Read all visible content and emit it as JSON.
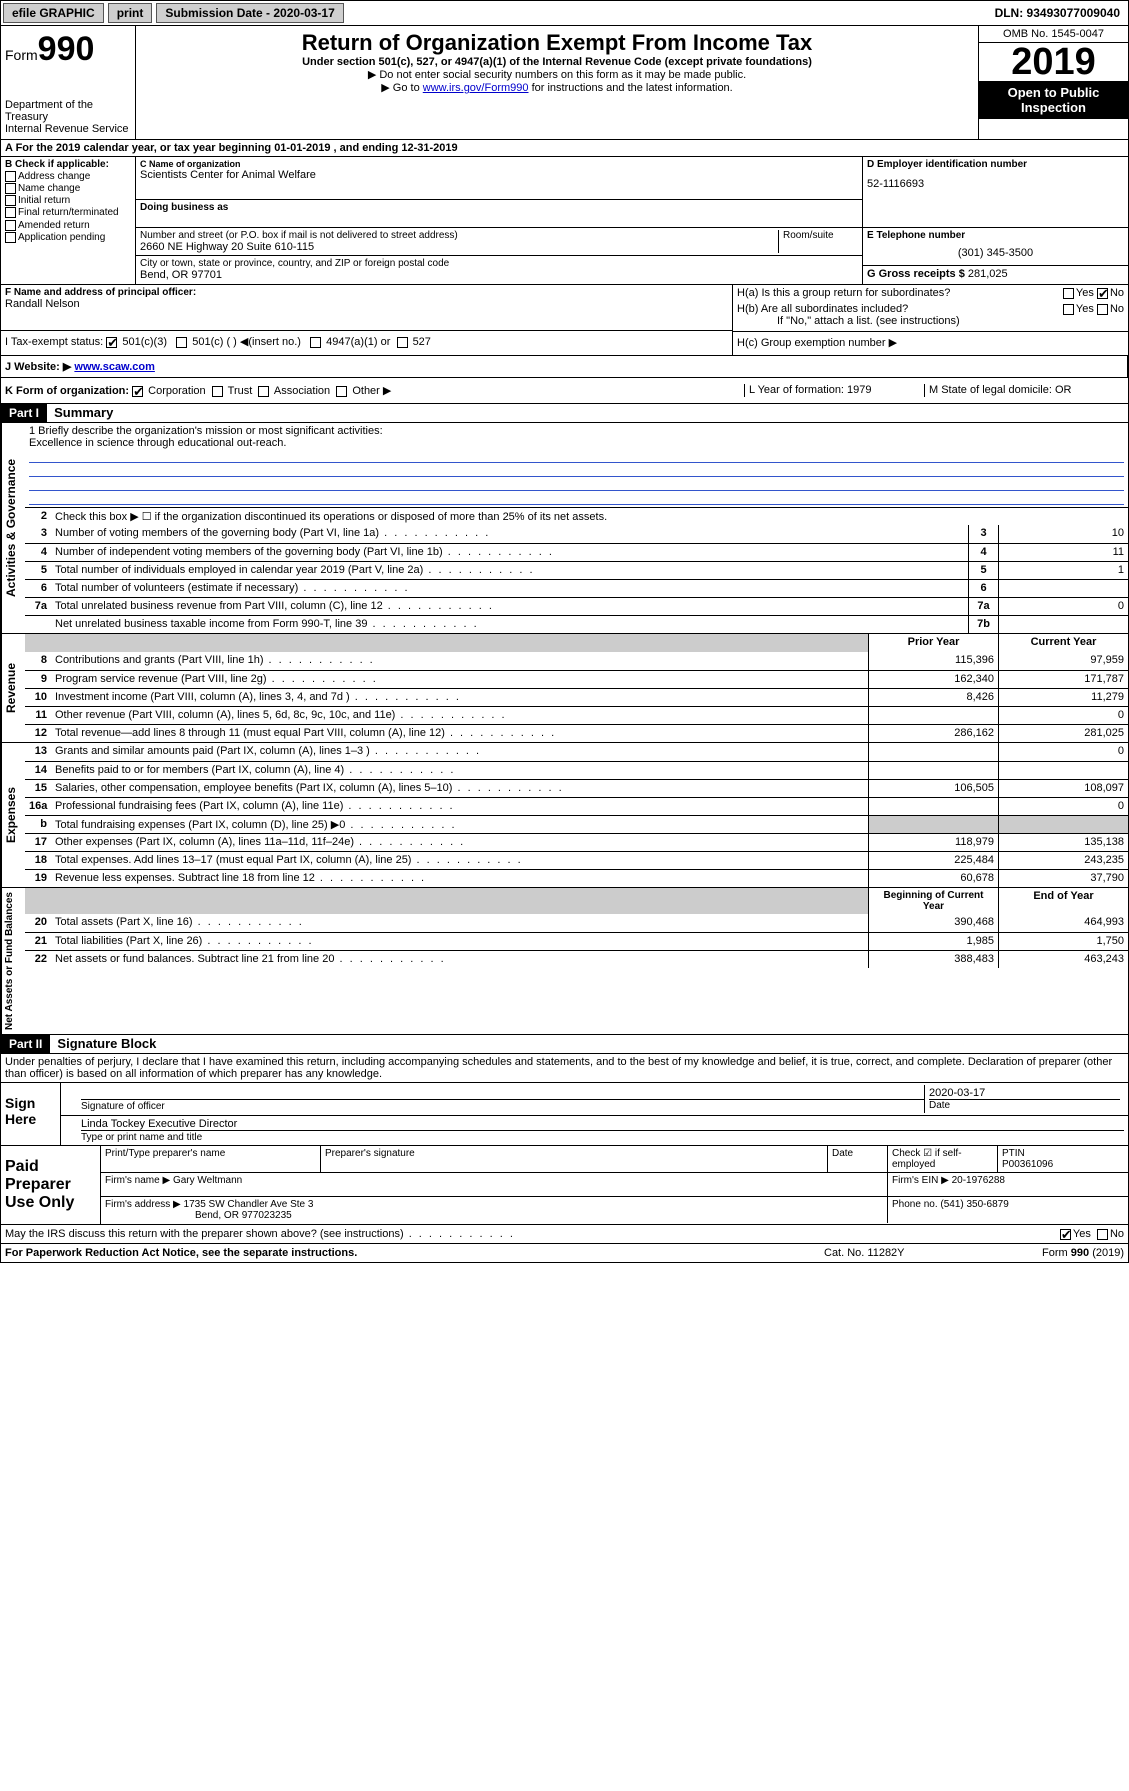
{
  "topbar": {
    "efile": "efile GRAPHIC",
    "print": "print",
    "subdate_lbl": "Submission Date - 2020-03-17",
    "dln": "DLN: 93493077009040"
  },
  "header": {
    "form_word": "Form",
    "form_num": "990",
    "dept": "Department of the Treasury\nInternal Revenue Service",
    "title": "Return of Organization Exempt From Income Tax",
    "subtitle": "Under section 501(c), 527, or 4947(a)(1) of the Internal Revenue Code (except private foundations)",
    "note1": "▶ Do not enter social security numbers on this form as it may be made public.",
    "note2_pre": "▶ Go to ",
    "note2_link": "www.irs.gov/Form990",
    "note2_post": " for instructions and the latest information.",
    "omb": "OMB No. 1545-0047",
    "year": "2019",
    "open": "Open to Public Inspection"
  },
  "row_a": "A For the 2019 calendar year, or tax year beginning 01-01-2019   , and ending 12-31-2019",
  "col_b": {
    "hdr": "B Check if applicable:",
    "opts": [
      "Address change",
      "Name change",
      "Initial return",
      "Final return/terminated",
      "Amended return",
      "Application pending"
    ]
  },
  "col_c": {
    "name_lbl": "C Name of organization",
    "name": "Scientists Center for Animal Welfare",
    "dba_lbl": "Doing business as",
    "street_lbl": "Number and street (or P.O. box if mail is not delivered to street address)",
    "street": "2660 NE Highway 20 Suite 610-115",
    "suite_lbl": "Room/suite",
    "city_lbl": "City or town, state or province, country, and ZIP or foreign postal code",
    "city": "Bend, OR  97701"
  },
  "col_d": {
    "lbl": "D Employer identification number",
    "val": "52-1116693"
  },
  "col_e": {
    "lbl": "E Telephone number",
    "val": "(301) 345-3500"
  },
  "col_g": {
    "lbl": "G Gross receipts $ ",
    "val": "281,025"
  },
  "col_f": {
    "lbl": "F Name and address of principal officer:",
    "val": "Randall Nelson"
  },
  "col_h": {
    "ha": "H(a)  Is this a group return for subordinates?",
    "hb": "H(b)  Are all subordinates included?",
    "hb_note": "If \"No,\" attach a list. (see instructions)",
    "hc": "H(c)  Group exemption number ▶"
  },
  "tax": {
    "lbl": "I    Tax-exempt status:",
    "o1": "501(c)(3)",
    "o2": "501(c) (  ) ◀(insert no.)",
    "o3": "4947(a)(1) or",
    "o4": "527"
  },
  "web": {
    "lbl": "J   Website: ▶ ",
    "val": "www.scaw.com"
  },
  "klm": {
    "k": "K Form of organization:",
    "k1": "Corporation",
    "k2": "Trust",
    "k3": "Association",
    "k4": "Other ▶",
    "l": "L Year of formation: 1979",
    "m": "M State of legal domicile: OR"
  },
  "part1": {
    "hdr": "Part I",
    "title": "Summary"
  },
  "summary": {
    "l1_lbl": "1   Briefly describe the organization's mission or most significant activities:",
    "l1_val": "Excellence in science through educational out-reach.",
    "l2": "Check this box ▶ ☐  if the organization discontinued its operations or disposed of more than 25% of its net assets.",
    "lines_gov": [
      {
        "n": "3",
        "t": "Number of voting members of the governing body (Part VI, line 1a)",
        "b": "3",
        "v": "10"
      },
      {
        "n": "4",
        "t": "Number of independent voting members of the governing body (Part VI, line 1b)",
        "b": "4",
        "v": "11"
      },
      {
        "n": "5",
        "t": "Total number of individuals employed in calendar year 2019 (Part V, line 2a)",
        "b": "5",
        "v": "1"
      },
      {
        "n": "6",
        "t": "Total number of volunteers (estimate if necessary)",
        "b": "6",
        "v": ""
      },
      {
        "n": "7a",
        "t": "Total unrelated business revenue from Part VIII, column (C), line 12",
        "b": "7a",
        "v": "0"
      },
      {
        "n": "",
        "t": "Net unrelated business taxable income from Form 990-T, line 39",
        "b": "7b",
        "v": ""
      }
    ],
    "rev_hdr_prior": "Prior Year",
    "rev_hdr_curr": "Current Year",
    "lines_rev": [
      {
        "n": "8",
        "t": "Contributions and grants (Part VIII, line 1h)",
        "p": "115,396",
        "c": "97,959"
      },
      {
        "n": "9",
        "t": "Program service revenue (Part VIII, line 2g)",
        "p": "162,340",
        "c": "171,787"
      },
      {
        "n": "10",
        "t": "Investment income (Part VIII, column (A), lines 3, 4, and 7d )",
        "p": "8,426",
        "c": "11,279"
      },
      {
        "n": "11",
        "t": "Other revenue (Part VIII, column (A), lines 5, 6d, 8c, 9c, 10c, and 11e)",
        "p": "",
        "c": "0"
      },
      {
        "n": "12",
        "t": "Total revenue—add lines 8 through 11 (must equal Part VIII, column (A), line 12)",
        "p": "286,162",
        "c": "281,025"
      }
    ],
    "lines_exp": [
      {
        "n": "13",
        "t": "Grants and similar amounts paid (Part IX, column (A), lines 1–3 )",
        "p": "",
        "c": "0"
      },
      {
        "n": "14",
        "t": "Benefits paid to or for members (Part IX, column (A), line 4)",
        "p": "",
        "c": ""
      },
      {
        "n": "15",
        "t": "Salaries, other compensation, employee benefits (Part IX, column (A), lines 5–10)",
        "p": "106,505",
        "c": "108,097"
      },
      {
        "n": "16a",
        "t": "Professional fundraising fees (Part IX, column (A), line 11e)",
        "p": "",
        "c": "0"
      },
      {
        "n": "b",
        "t": "Total fundraising expenses (Part IX, column (D), line 25) ▶0",
        "p": "shade",
        "c": "shade"
      },
      {
        "n": "17",
        "t": "Other expenses (Part IX, column (A), lines 11a–11d, 11f–24e)",
        "p": "118,979",
        "c": "135,138"
      },
      {
        "n": "18",
        "t": "Total expenses. Add lines 13–17 (must equal Part IX, column (A), line 25)",
        "p": "225,484",
        "c": "243,235"
      },
      {
        "n": "19",
        "t": "Revenue less expenses. Subtract line 18 from line 12",
        "p": "60,678",
        "c": "37,790"
      }
    ],
    "na_hdr_beg": "Beginning of Current Year",
    "na_hdr_end": "End of Year",
    "lines_na": [
      {
        "n": "20",
        "t": "Total assets (Part X, line 16)",
        "p": "390,468",
        "c": "464,993"
      },
      {
        "n": "21",
        "t": "Total liabilities (Part X, line 26)",
        "p": "1,985",
        "c": "1,750"
      },
      {
        "n": "22",
        "t": "Net assets or fund balances. Subtract line 21 from line 20",
        "p": "388,483",
        "c": "463,243"
      }
    ]
  },
  "part2": {
    "hdr": "Part II",
    "title": "Signature Block"
  },
  "perjury": "Under penalties of perjury, I declare that I have examined this return, including accompanying schedules and statements, and to the best of my knowledge and belief, it is true, correct, and complete. Declaration of preparer (other than officer) is based on all information of which preparer has any knowledge.",
  "sign": {
    "here": "Sign Here",
    "sig_lbl": "Signature of officer",
    "date_val": "2020-03-17",
    "date_lbl": "Date",
    "name_val": "Linda Tockey  Executive Director",
    "name_lbl": "Type or print name and title"
  },
  "paid": {
    "hdr": "Paid Preparer Use Only",
    "r1c1_lbl": "Print/Type preparer's name",
    "r1c2_lbl": "Preparer's signature",
    "r1c3_lbl": "Date",
    "r1c4": "Check ☑ if self-employed",
    "r1c5_lbl": "PTIN",
    "r1c5_val": "P00361096",
    "r2_lbl": "Firm's name    ▶",
    "r2_val": "Gary Weltmann",
    "r2_ein": "Firm's EIN ▶ 20-1976288",
    "r3_lbl": "Firm's address ▶",
    "r3_val": "1735 SW Chandler Ave Ste 3",
    "r3_city": "Bend, OR  977023235",
    "r3_phone": "Phone no. (541) 350-6879"
  },
  "discuss": "May the IRS discuss this return with the preparer shown above? (see instructions)",
  "footer": {
    "l": "For Paperwork Reduction Act Notice, see the separate instructions.",
    "m": "Cat. No. 11282Y",
    "r": "Form 990 (2019)"
  }
}
